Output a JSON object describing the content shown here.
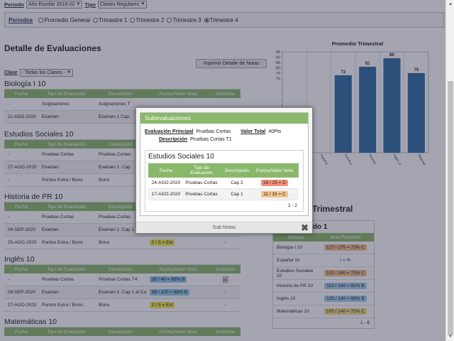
{
  "filters": {
    "periodo_label": "Periodo",
    "periodo_value": "Año Escolar 2019-20",
    "tipo_label": "Tipo",
    "tipo_value": "Clases Regulares"
  },
  "periods": {
    "title": "Periodos",
    "options": [
      "Promedio General",
      "Trimestre 1",
      "Trimestre 2",
      "Trimestre 3",
      "Trimestre 4"
    ],
    "selected": "Trimestre 4"
  },
  "detail": {
    "heading": "Detalle de Evaluaciones",
    "print_label": "Imprimir Detalle de Notas",
    "class_label": "Clase",
    "class_value": "- Todas las Clases -"
  },
  "table_headers": [
    "Fecha",
    "Tipo de Evaluación",
    "Descripción",
    "Puntos/Valor Nota",
    "Subnotas"
  ],
  "courses": [
    {
      "title": "Biología I 10",
      "rows": [
        {
          "fecha": "-",
          "tipo": "Asignaciones",
          "desc": "Asignaciones T",
          "puntos": "",
          "sub": ""
        },
        {
          "fecha": "11-AGO-2020",
          "tipo": "Examen",
          "desc": "Examen 1 Cap",
          "puntos": "",
          "sub": ""
        }
      ]
    },
    {
      "title": "Estudios Sociales 10",
      "rows": [
        {
          "fecha": "-",
          "tipo": "Pruebas Cortas",
          "desc": "Pruebas Cortas",
          "puntos": "",
          "sub": ""
        },
        {
          "fecha": "27-AGO-2020",
          "tipo": "Examen",
          "desc": "Examen 1: Cap",
          "puntos": "",
          "sub": ""
        },
        {
          "fecha": "-",
          "tipo": "Puntos Extra / Bono",
          "desc": "Bono",
          "puntos": "",
          "sub": ""
        }
      ]
    },
    {
      "title": "Historia de PR 10",
      "rows": [
        {
          "fecha": "-",
          "tipo": "Pruebas Cortas",
          "desc": "Pruebas Cortas",
          "puntos": "",
          "sub": ""
        },
        {
          "fecha": "04-SEP-2020",
          "tipo": "Examen",
          "desc": "Examen 1: Cap 1 al Cap 3",
          "puntos": "",
          "sub": "-"
        },
        {
          "fecha": "25-AGO-2020",
          "tipo": "Puntos Extra / Bono",
          "desc": "Bono",
          "puntos": "5 / 5    = Ext",
          "sub": "-"
        }
      ]
    },
    {
      "title": "Inglés 10",
      "rows": [
        {
          "fecha": "-",
          "tipo": "Pruebas Cortas",
          "desc": "Pruebas Cortas T4",
          "puntos": "35 / 40    = 88% B",
          "sub": "icon"
        },
        {
          "fecha": "08-SEP-2020",
          "tipo": "Examen",
          "desc": "Examen 1: Cap 1 al Cap 3",
          "puntos": "88 / 100    = 88% B",
          "sub": "-"
        },
        {
          "fecha": "27-AGO-2020",
          "tipo": "Puntos Extra / Bono",
          "desc": "Bono",
          "puntos": "2 / 5    = Ext",
          "sub": "-"
        }
      ]
    },
    {
      "title": "Matemáticas 10",
      "rows": []
    }
  ],
  "chart_data": {
    "type": "bar",
    "title": "Promedio Trimestral",
    "categories": [
      "Biología I 10",
      "Español 10",
      "Estudios Sociales 10",
      "Historia de PR 10",
      "Inglés 10",
      "Matemáticas 10"
    ],
    "values": [
      null,
      null,
      73,
      81,
      89,
      75
    ],
    "ylim": [
      0,
      95
    ],
    "yticks": [
      0,
      5,
      10,
      15,
      20,
      25,
      30,
      35,
      40,
      45,
      50,
      55,
      60,
      65,
      70,
      75,
      80,
      85,
      90,
      95
    ],
    "ytick_labels_shown": [
      95,
      90,
      85,
      80,
      75,
      70
    ],
    "bar_color": "#2e6da4"
  },
  "summary": {
    "heading_right": "Trimestral",
    "box_title": "do 1",
    "headers": [
      "Materia",
      "Nota Promedio"
    ],
    "rows": [
      {
        "materia": "Biología I 10",
        "nota": "127 / 175 = 73% C",
        "color": "orange"
      },
      {
        "materia": "Español 10",
        "nota": "/          = %",
        "color": "none"
      },
      {
        "materia": "Estudios Sociales 10",
        "nota": "102 / 140 = 73% C",
        "color": "orange"
      },
      {
        "materia": "Historia de PR 10",
        "nota": "113 / 140 = 81% B",
        "color": "blue"
      },
      {
        "materia": "Inglés 10",
        "nota": "125 / 140 = 89% B",
        "color": "blue"
      },
      {
        "materia": "Matemáticas 10",
        "nota": "105 / 140 = 75% C",
        "color": "orange"
      }
    ],
    "footer": "1 - 6"
  },
  "modal": {
    "title": "Subevaluaciones",
    "eval_label": "Evaluación Principal",
    "eval_value": "Pruebas Cortas",
    "valor_label": "Valor Total",
    "valor_value": "40Pts",
    "desc_label": "Descripción",
    "desc_value": "Pruebas Cortas T1",
    "subject": "Estudios Sociales 10",
    "headers": [
      "Fecha",
      "Tipo de Evaluación",
      "Descripción",
      "Puntos/Valor Nota"
    ],
    "rows": [
      {
        "fecha": "24-AGO-2020",
        "tipo": "Pruebas Cortas",
        "desc": "Cap 2",
        "puntos": "16 / 25    = D",
        "color": "red"
      },
      {
        "fecha": "17-AGO-2020",
        "tipo": "Pruebas Cortas",
        "desc": "Cap 1",
        "puntos": "11 / 15    = C",
        "color": "orange"
      }
    ],
    "footer": "1 - 2",
    "button_label": "Sub Notas",
    "close_glyph": "✖"
  }
}
